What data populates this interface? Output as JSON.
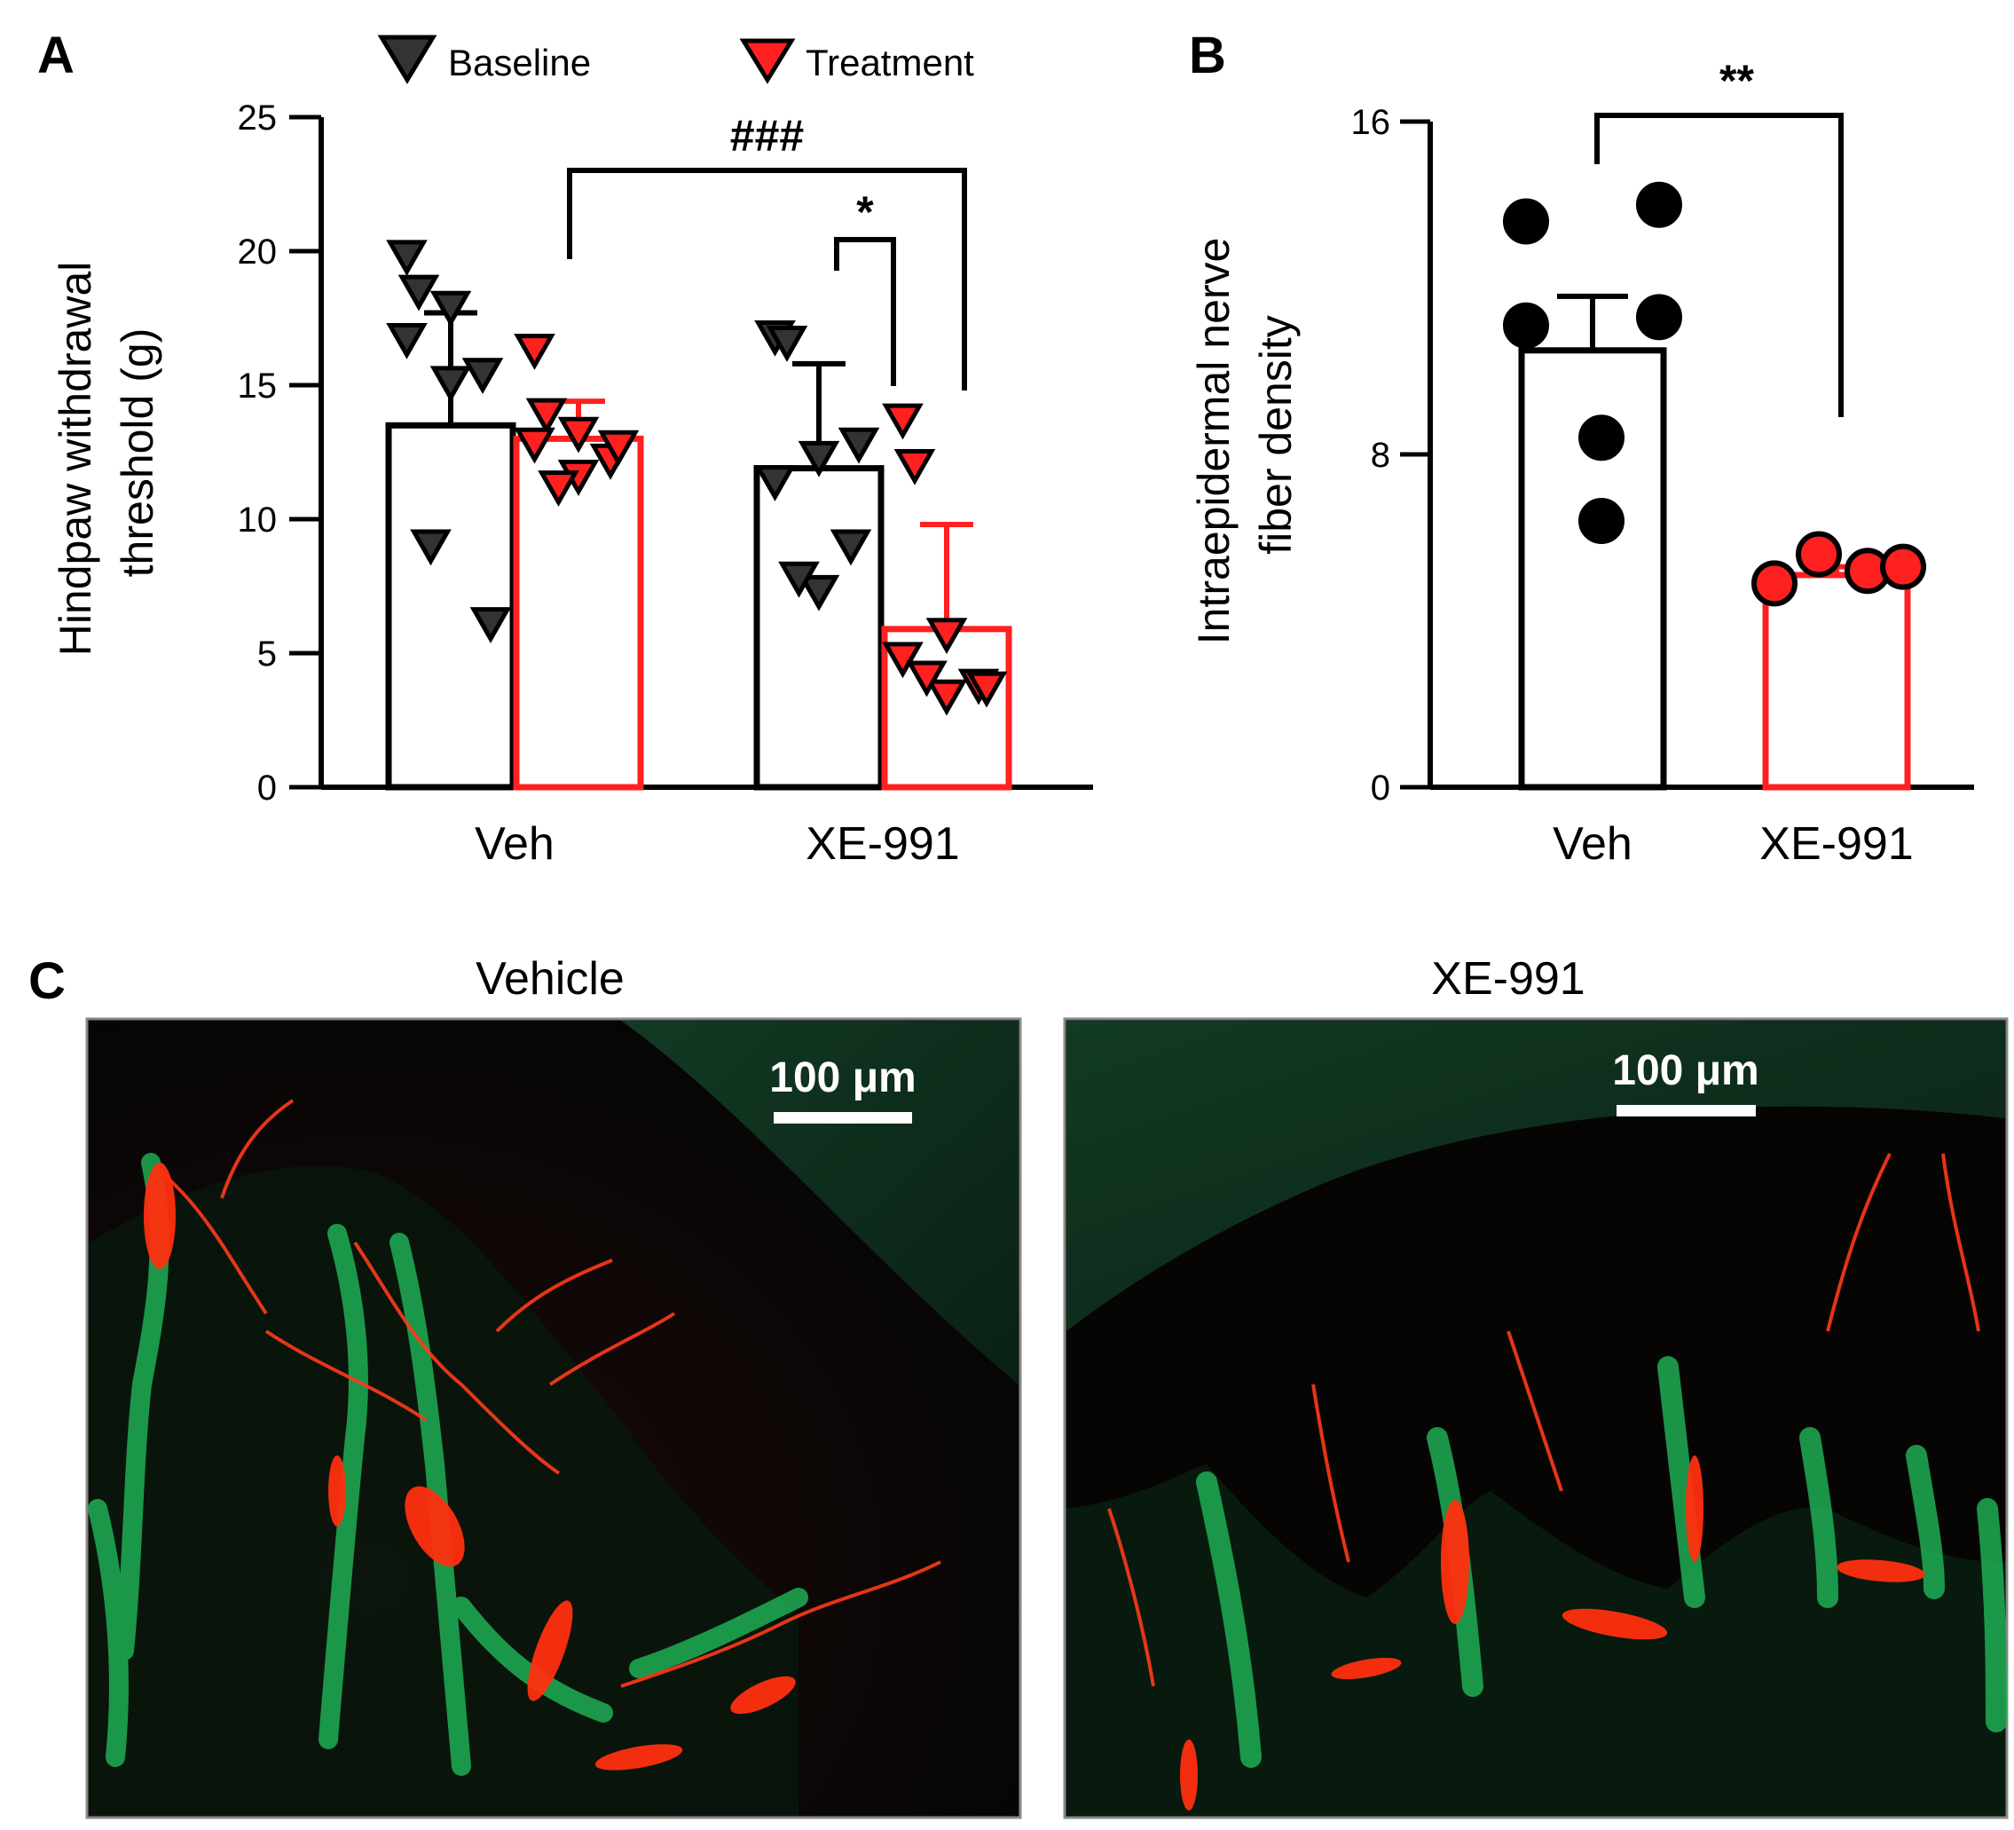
{
  "panels": {
    "a": "A",
    "b": "B",
    "c": "C"
  },
  "colors": {
    "baseline": "#333333",
    "treatment": "#ff2020",
    "axis": "#000000"
  },
  "legend": {
    "baseline": "Baseline",
    "treatment": "Treatment"
  },
  "chart_data": [
    {
      "type": "bar",
      "panel": "A",
      "ylabel_line1": "Hindpaw withdrawal",
      "ylabel_line2": "threshold (g)",
      "ylim": [
        0,
        25
      ],
      "yticks": [
        "0",
        "5",
        "10",
        "15",
        "20",
        "25"
      ],
      "categories": [
        "Veh",
        "XE-991"
      ],
      "series": [
        {
          "name": "Baseline",
          "values": [
            13.5,
            11.9
          ],
          "errors": [
            4.2,
            3.9
          ],
          "points": [
            [
              19.8,
              18.5,
              17.9,
              16.7,
              15.4,
              15.1,
              9.0,
              6.1
            ],
            [
              16.8,
              16.6,
              12.3,
              11.4,
              9.0,
              7.3,
              7.8,
              12.8
            ]
          ]
        },
        {
          "name": "Treatment",
          "values": [
            13.0,
            5.9
          ],
          "errors": [
            1.4,
            3.9
          ],
          "points": [
            [
              16.3,
              13.9,
              13.2,
              12.8,
              12.2,
              11.6,
              11.2,
              12.7
            ],
            [
              13.7,
              12.0,
              5.7,
              4.8,
              3.8,
              3.4,
              4.1,
              3.7
            ]
          ]
        }
      ],
      "significance": [
        {
          "label": "###",
          "compare": "Veh Treatment vs XE-991 Treatment"
        },
        {
          "label": "*",
          "compare": "XE-991 Baseline vs XE-991 Treatment"
        }
      ]
    },
    {
      "type": "bar",
      "panel": "B",
      "ylabel_line1": "Intraepidermal nerve",
      "ylabel_line2": "fiber density",
      "ylim": [
        0,
        16
      ],
      "yticks": [
        "0",
        "8",
        "16"
      ],
      "categories": [
        "Veh",
        "XE-991"
      ],
      "values": [
        10.5,
        5.1
      ],
      "errors": [
        1.3,
        0.2
      ],
      "points": [
        [
          13.6,
          14.0,
          11.1,
          11.3,
          8.4,
          6.4
        ],
        [
          4.9,
          5.6,
          5.2,
          5.3
        ]
      ],
      "significance": [
        {
          "label": "**",
          "compare": "Veh vs XE-991"
        }
      ]
    }
  ],
  "micrographs": [
    {
      "title": "Vehicle",
      "scale_label": "100 μm"
    },
    {
      "title": "XE-991",
      "scale_label": "100 μm"
    }
  ]
}
